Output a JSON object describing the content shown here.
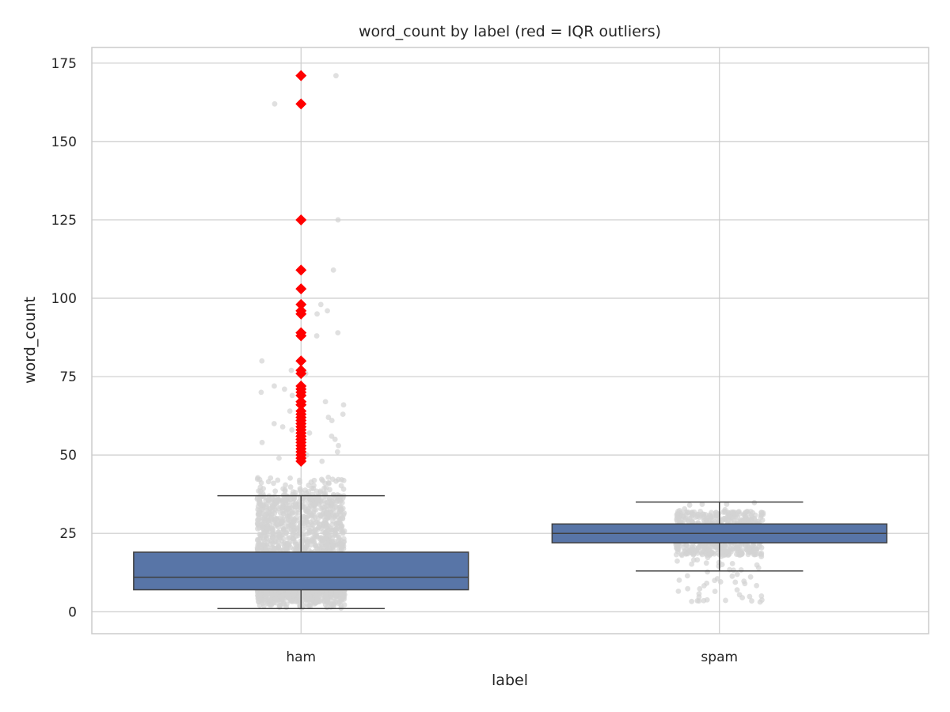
{
  "chart_data": {
    "type": "box",
    "title": "word_count by label (red = IQR outliers)",
    "xlabel": "label",
    "ylabel": "word_count",
    "ylim": [
      -7,
      180
    ],
    "yticks": [
      0,
      25,
      50,
      75,
      100,
      125,
      150,
      175
    ],
    "grid": true,
    "categories": [
      "ham",
      "spam"
    ],
    "boxes": [
      {
        "category": "ham",
        "whisker_low": 1,
        "q1": 7,
        "median": 11,
        "q3": 19,
        "whisker_high": 37,
        "outliers": [
          48,
          49,
          50,
          51,
          52,
          53,
          54,
          55,
          56,
          57,
          58,
          59,
          60,
          61,
          62,
          63,
          64,
          66,
          67,
          69,
          70,
          71,
          72,
          76,
          77,
          80,
          88,
          89,
          95,
          96,
          98,
          103,
          109,
          125,
          162,
          171
        ]
      },
      {
        "category": "spam",
        "whisker_low": 13,
        "q1": 22,
        "median": 25,
        "q3": 28,
        "whisker_high": 35,
        "outliers": []
      }
    ],
    "colors": {
      "box": "#5875a7",
      "points": "#d3d3d3",
      "outliers": "#ff0000"
    }
  }
}
